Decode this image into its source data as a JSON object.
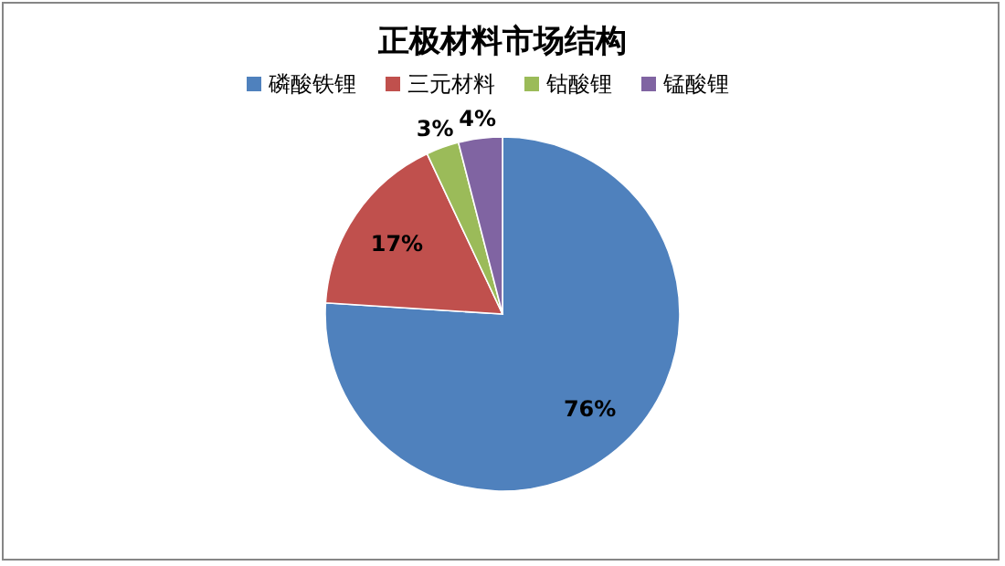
{
  "chart_data": {
    "type": "pie",
    "title": "正极材料市场结构",
    "categories": [
      "磷酸铁锂",
      "三元材料",
      "钴酸锂",
      "锰酸锂"
    ],
    "values": [
      76,
      17,
      3,
      4
    ],
    "value_labels": [
      "76%",
      "17%",
      "3%",
      "4%"
    ],
    "colors": [
      "#4f81bd",
      "#c0504d",
      "#9bbb59",
      "#8064a2"
    ],
    "legend": "top"
  }
}
